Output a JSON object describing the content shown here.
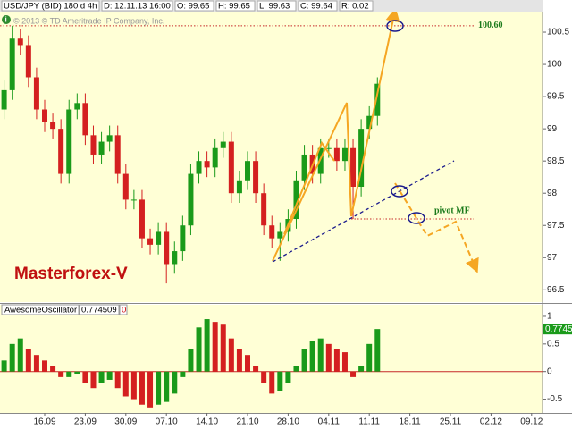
{
  "header": {
    "fields": [
      "USD/JPY (BID) 180 d 4h",
      "D: 12.11.13 16:00",
      "O: 99.65",
      "H: 99.65",
      "L: 99.63",
      "C: 99.64",
      "R: 0.02"
    ],
    "copyright": "© 2013 © TD Ameritrade IP Company, Inc.",
    "watermark": "Masterforex-V"
  },
  "chart_data": [
    {
      "type": "candlestick",
      "x": [
        "09.09",
        "10.09",
        "11.09",
        "12.09",
        "13.09",
        "16.09",
        "17.09",
        "18.09",
        "19.09",
        "20.09",
        "23.09",
        "24.09",
        "25.09",
        "26.09",
        "27.09",
        "30.09",
        "01.10",
        "02.10",
        "03.10",
        "04.10",
        "07.10",
        "08.10",
        "09.10",
        "10.10",
        "11.10",
        "14.10",
        "15.10",
        "16.10",
        "17.10",
        "18.10",
        "21.10",
        "22.10",
        "23.10",
        "24.10",
        "25.10",
        "28.10",
        "29.10",
        "30.10",
        "31.10",
        "01.11",
        "04.11",
        "05.11",
        "06.11",
        "07.11",
        "08.11",
        "11.11",
        "12.11"
      ],
      "open": [
        99.3,
        99.6,
        100.4,
        100.3,
        99.8,
        99.3,
        99.1,
        99.0,
        98.3,
        99.3,
        99.4,
        98.9,
        98.6,
        98.8,
        98.9,
        98.3,
        97.9,
        97.9,
        97.3,
        97.2,
        97.4,
        96.9,
        97.1,
        97.5,
        98.3,
        98.5,
        98.4,
        98.7,
        98.8,
        98.0,
        98.2,
        98.5,
        98.0,
        97.5,
        97.3,
        97.4,
        97.6,
        98.2,
        98.6,
        98.3,
        98.7,
        98.7,
        98.5,
        98.7,
        98.1,
        99.0,
        99.2
      ],
      "high": [
        99.75,
        100.6,
        100.55,
        100.45,
        99.95,
        99.45,
        99.25,
        99.15,
        99.45,
        99.55,
        99.55,
        99.05,
        98.95,
        99.05,
        99.05,
        98.45,
        98.05,
        98.05,
        97.45,
        97.55,
        97.55,
        97.25,
        97.65,
        98.45,
        98.65,
        98.65,
        98.85,
        98.95,
        98.95,
        98.35,
        98.65,
        98.65,
        98.15,
        97.65,
        97.55,
        97.75,
        98.35,
        98.75,
        98.75,
        98.85,
        98.85,
        98.85,
        98.85,
        98.85,
        99.15,
        99.35,
        99.8
      ],
      "low": [
        99.15,
        99.45,
        100.15,
        99.65,
        99.15,
        98.95,
        98.85,
        98.15,
        98.15,
        99.15,
        98.75,
        98.45,
        98.45,
        98.65,
        98.15,
        97.75,
        97.75,
        97.15,
        97.05,
        97.05,
        96.6,
        96.75,
        96.95,
        97.35,
        98.15,
        98.25,
        98.25,
        98.55,
        97.85,
        97.85,
        98.05,
        97.85,
        97.35,
        97.15,
        96.95,
        97.25,
        97.45,
        98.05,
        98.15,
        98.15,
        98.55,
        98.35,
        98.35,
        97.6,
        97.95,
        98.85,
        99.05
      ],
      "close": [
        99.6,
        100.4,
        100.3,
        99.8,
        99.3,
        99.1,
        99.0,
        98.3,
        99.3,
        99.4,
        98.9,
        98.6,
        98.8,
        98.9,
        98.3,
        97.9,
        97.9,
        97.3,
        97.2,
        97.4,
        96.9,
        97.1,
        97.5,
        98.3,
        98.5,
        98.4,
        98.7,
        98.8,
        98.0,
        98.2,
        98.5,
        98.0,
        97.5,
        97.3,
        97.4,
        97.6,
        98.2,
        98.6,
        98.3,
        98.7,
        98.7,
        98.5,
        98.7,
        98.1,
        99.0,
        99.2,
        99.7
      ],
      "up_color": "#1a9a1a",
      "down_color": "#d42020",
      "ylim": [
        96.31,
        101.0
      ],
      "yticks": [
        100.5,
        100,
        99.5,
        99,
        98.5,
        98,
        97.5,
        97,
        96.5
      ],
      "level": {
        "value": 100.6,
        "label": "100.60"
      },
      "pivot_label": "pivot MF"
    },
    {
      "type": "bar",
      "title": "AwesomeOscillator",
      "header_value": "0.774509",
      "header_extra": "0",
      "values": [
        0.2,
        0.5,
        0.6,
        0.4,
        0.3,
        0.2,
        0.1,
        -0.1,
        -0.1,
        -0.05,
        -0.2,
        -0.3,
        -0.2,
        -0.15,
        -0.3,
        -0.45,
        -0.5,
        -0.6,
        -0.65,
        -0.6,
        -0.55,
        -0.4,
        -0.1,
        0.4,
        0.8,
        0.95,
        0.9,
        0.85,
        0.6,
        0.4,
        0.3,
        0.1,
        -0.2,
        -0.4,
        -0.35,
        -0.2,
        0.1,
        0.4,
        0.55,
        0.6,
        0.5,
        0.4,
        0.35,
        -0.1,
        0.1,
        0.5,
        0.77
      ],
      "last_label": "0.7745",
      "up_color": "#1a9a1a",
      "down_color": "#d42020",
      "ylim": [
        -0.75,
        1.21
      ],
      "yticks": [
        1,
        0.5,
        0,
        -0.5
      ],
      "xticks": [
        "16.09",
        "23.09",
        "30.09",
        "07.10",
        "14.10",
        "21.10",
        "28.10",
        "04.11",
        "11.11",
        "18.11",
        "25.11",
        "02.12",
        "09.12"
      ]
    }
  ]
}
